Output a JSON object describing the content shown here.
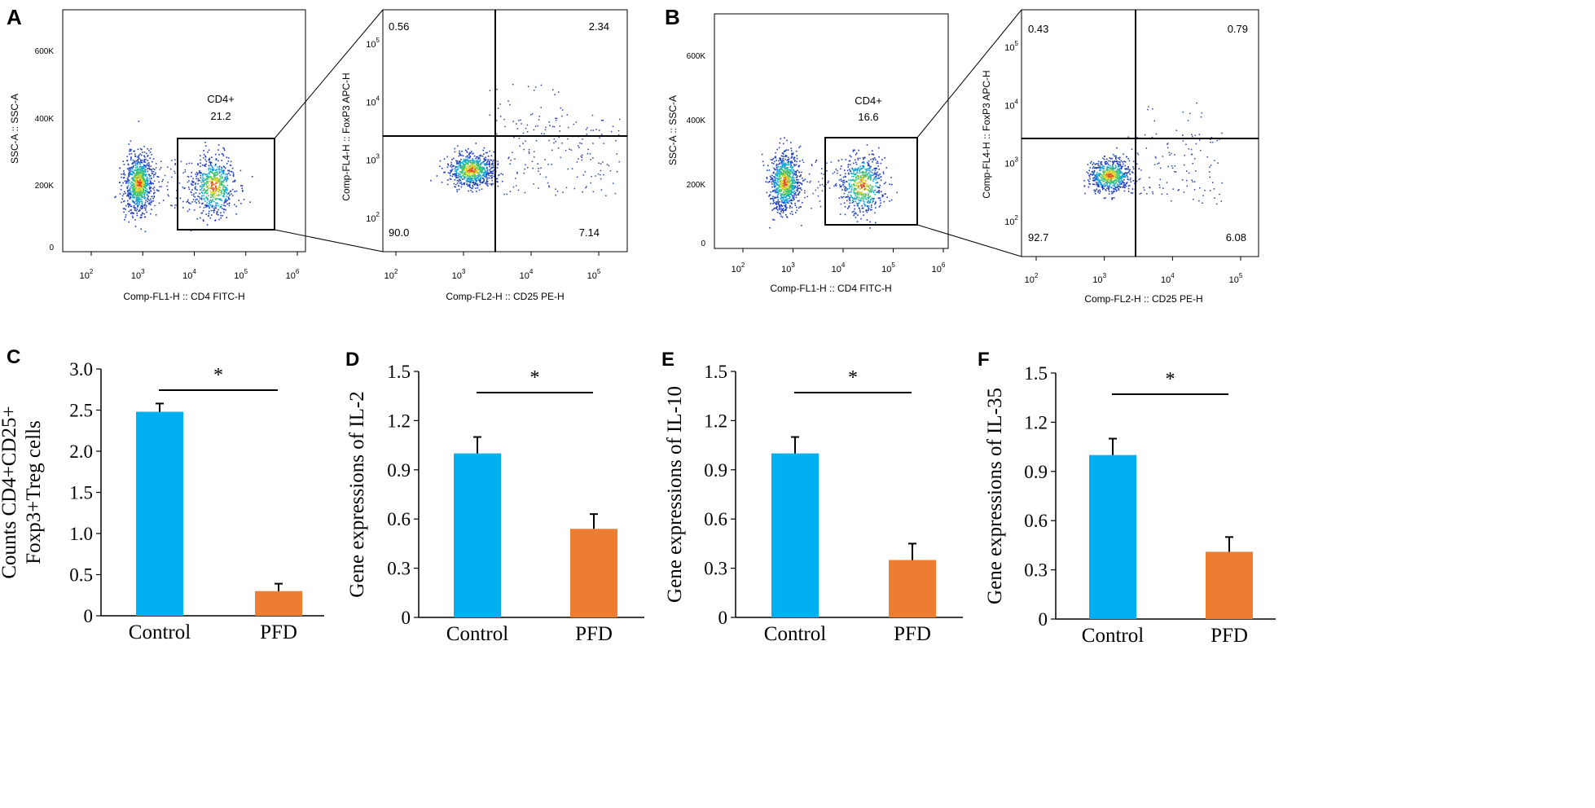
{
  "panels": {
    "A": {
      "letter": "A",
      "gate_plot": {
        "xlabel": "Comp-FL1-H :: CD4 FITC-H",
        "ylabel": "SSC-A :: SSC-A",
        "xticks": [
          "10^2",
          "10^3",
          "10^4",
          "10^5",
          "10^6"
        ],
        "yticks": [
          "0",
          "200K",
          "400K",
          "600K"
        ],
        "gate_label": "CD4+",
        "gate_value": "21.2"
      },
      "quad_plot": {
        "xlabel": "Comp-FL2-H :: CD25 PE-H",
        "ylabel": "Comp-FL4-H :: FoxP3 APC-H",
        "xticks": [
          "10^2",
          "10^3",
          "10^4",
          "10^5"
        ],
        "yticks": [
          "10^2",
          "10^3",
          "10^4",
          "10^5"
        ],
        "q_ul": "0.56",
        "q_ur": "2.34",
        "q_ll": "90.0",
        "q_lr": "7.14"
      }
    },
    "B": {
      "letter": "B",
      "gate_plot": {
        "xlabel": "Comp-FL1-H :: CD4 FITC-H",
        "ylabel": "SSC-A :: SSC-A",
        "xticks": [
          "10^2",
          "10^3",
          "10^4",
          "10^5",
          "10^6"
        ],
        "yticks": [
          "0",
          "200K",
          "400K",
          "600K"
        ],
        "gate_label": "CD4+",
        "gate_value": "16.6"
      },
      "quad_plot": {
        "xlabel": "Comp-FL2-H :: CD25 PE-H",
        "ylabel": "Comp-FL4-H :: FoxP3 APC-H",
        "xticks": [
          "10^2",
          "10^3",
          "10^4",
          "10^5"
        ],
        "yticks": [
          "10^2",
          "10^3",
          "10^4",
          "10^5"
        ],
        "q_ul": "0.43",
        "q_ur": "0.79",
        "q_ll": "92.7",
        "q_lr": "6.08"
      }
    }
  },
  "colors": {
    "control": "#00b0f0",
    "pfd": "#ed7d31",
    "axis": "#000000"
  },
  "chart_data": [
    {
      "panel": "C",
      "type": "bar",
      "categories": [
        "Control",
        "PFD"
      ],
      "values": [
        2.48,
        0.3
      ],
      "errors": [
        0.1,
        0.09
      ],
      "ylabel": "Counts CD4+CD25+ Foxp3+Treg cells",
      "ylim": [
        0,
        3.0
      ],
      "yticks": [
        "0",
        "0.5",
        "1.0",
        "1.5",
        "2.0",
        "2.5",
        "3.0"
      ],
      "significance": "*"
    },
    {
      "panel": "D",
      "type": "bar",
      "categories": [
        "Control",
        "PFD"
      ],
      "values": [
        1.0,
        0.54
      ],
      "errors": [
        0.1,
        0.09
      ],
      "ylabel": "Gene expressions of IL-2",
      "ylim": [
        0,
        1.5
      ],
      "yticks": [
        "0",
        "0.3",
        "0.6",
        "0.9",
        "1.2",
        "1.5"
      ],
      "significance": "*"
    },
    {
      "panel": "E",
      "type": "bar",
      "categories": [
        "Control",
        "PFD"
      ],
      "values": [
        1.0,
        0.35
      ],
      "errors": [
        0.1,
        0.1
      ],
      "ylabel": "Gene expressions of IL-10",
      "ylim": [
        0,
        1.5
      ],
      "yticks": [
        "0",
        "0.3",
        "0.6",
        "0.9",
        "1.2",
        "1.5"
      ],
      "significance": "*"
    },
    {
      "panel": "F",
      "type": "bar",
      "categories": [
        "Control",
        "PFD"
      ],
      "values": [
        1.0,
        0.41
      ],
      "errors": [
        0.1,
        0.09
      ],
      "ylabel": "Gene expressions of IL-35",
      "ylim": [
        0,
        1.5
      ],
      "yticks": [
        "0",
        "0.3",
        "0.6",
        "0.9",
        "1.2",
        "1.5"
      ],
      "significance": "*"
    }
  ]
}
